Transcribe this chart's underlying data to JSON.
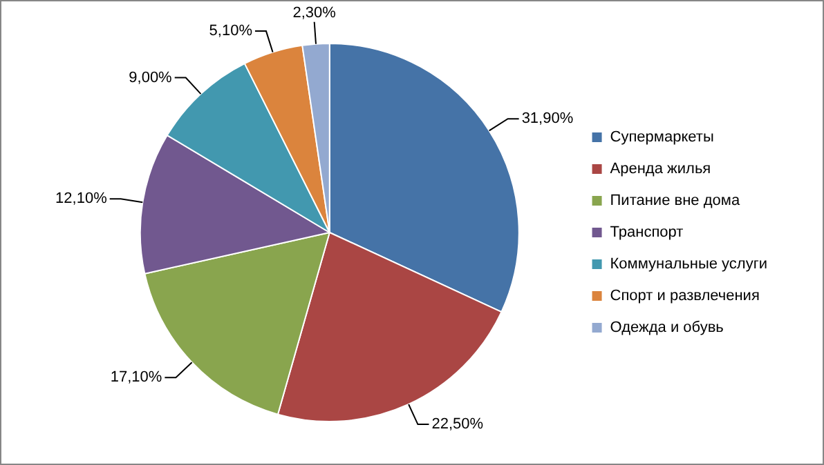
{
  "chart_data": {
    "type": "pie",
    "categories": [
      "Супермаркеты",
      "Аренда жилья",
      "Питание вне дома",
      "Транспорт",
      "Коммунальные услуги",
      "Спорт и развлечения",
      "Одежда и обувь"
    ],
    "values": [
      31.9,
      22.5,
      17.1,
      12.1,
      9.0,
      5.1,
      2.3
    ],
    "value_labels": [
      "31,90%",
      "22,50%",
      "17,10%",
      "12,10%",
      "9,00%",
      "5,10%",
      "2,30%"
    ],
    "colors": [
      "#4573a7",
      "#aa4644",
      "#89a54e",
      "#71588f",
      "#4298af",
      "#db843d",
      "#93a9d0"
    ],
    "legend": "right"
  }
}
